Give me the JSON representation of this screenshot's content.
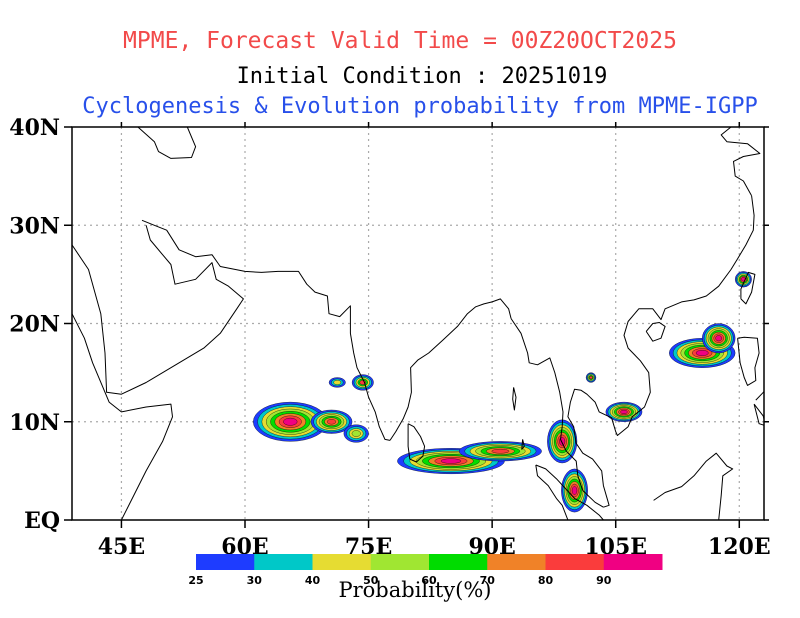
{
  "titles": {
    "line1": "MPME, Forecast Valid Time = 00Z20OCT2025",
    "line2": "Initial Condition : 20251019",
    "line3": "Cyclogenesis & Evolution probability from MPME-IGPP"
  },
  "colors": {
    "title1": "#f24a4a",
    "title2": "#000000",
    "title3": "#2850ea",
    "gridlines": "#aaaaaa",
    "coastline": "#000000"
  },
  "map_extent": {
    "lon_min": 39,
    "lon_max": 123,
    "lat_min": 0,
    "lat_max": 40
  },
  "lat_ticks": [
    {
      "value": 0,
      "label": "EQ"
    },
    {
      "value": 10,
      "label": "10N"
    },
    {
      "value": 20,
      "label": "20N"
    },
    {
      "value": 30,
      "label": "30N"
    },
    {
      "value": 40,
      "label": "40N"
    }
  ],
  "lon_ticks": [
    {
      "value": 45,
      "label": "45E"
    },
    {
      "value": 60,
      "label": "60E"
    },
    {
      "value": 75,
      "label": "75E"
    },
    {
      "value": 90,
      "label": "90E"
    },
    {
      "value": 105,
      "label": "105E"
    },
    {
      "value": 120,
      "label": "120E"
    }
  ],
  "colorbar": {
    "title": "Probability(%)",
    "bins": [
      {
        "color": "#1e3cff",
        "label": "25"
      },
      {
        "color": "#00c8c8",
        "label": "30"
      },
      {
        "color": "#e6dc32",
        "label": "40"
      },
      {
        "color": "#a0e632",
        "label": "50"
      },
      {
        "color": "#00dc00",
        "label": "60"
      },
      {
        "color": "#f08228",
        "label": "70"
      },
      {
        "color": "#fa3c3c",
        "label": "80"
      },
      {
        "color": "#f00082",
        "label": "90"
      }
    ]
  },
  "probability_regions": [
    {
      "region": "Arabian Sea west",
      "center": [
        65.5,
        10.0
      ],
      "radii": [
        4.5,
        2.0
      ],
      "levels": [
        25,
        30,
        40,
        50,
        60,
        70,
        80,
        90
      ]
    },
    {
      "region": "Arabian Sea west tail",
      "center": [
        70.5,
        10.0
      ],
      "radii": [
        2.5,
        1.2
      ],
      "levels": [
        25,
        30,
        40,
        50,
        60,
        70,
        80
      ]
    },
    {
      "region": "Arabian Sea north",
      "center": [
        74.3,
        14.0
      ],
      "radii": [
        1.3,
        0.8
      ],
      "levels": [
        25,
        30,
        40,
        60,
        80
      ]
    },
    {
      "region": "Lakshadweep",
      "center": [
        71.2,
        14.0
      ],
      "radii": [
        1.0,
        0.5
      ],
      "levels": [
        25,
        30,
        40
      ]
    },
    {
      "region": "Arabian Sea south",
      "center": [
        73.5,
        8.8
      ],
      "radii": [
        1.5,
        0.9
      ],
      "levels": [
        25,
        30,
        40,
        50
      ]
    },
    {
      "region": "Bay of Bengal south",
      "center": [
        85.0,
        6.0
      ],
      "radii": [
        6.5,
        1.3
      ],
      "levels": [
        25,
        30,
        40,
        50,
        60,
        70,
        80,
        90
      ]
    },
    {
      "region": "Bay of Bengal south-east",
      "center": [
        91.0,
        7.0
      ],
      "radii": [
        5.0,
        1.0
      ],
      "levels": [
        25,
        30,
        40,
        50,
        60,
        70,
        80
      ]
    },
    {
      "region": "Andaman Sea",
      "center": [
        98.5,
        8.0
      ],
      "radii": [
        1.8,
        2.2
      ],
      "levels": [
        25,
        30,
        40,
        50,
        60,
        70,
        80,
        90
      ]
    },
    {
      "region": "Strait of Malacca",
      "center": [
        100.0,
        3.0
      ],
      "radii": [
        1.6,
        2.2
      ],
      "levels": [
        25,
        30,
        40,
        50,
        60,
        70,
        80,
        90
      ]
    },
    {
      "region": "South China Sea west",
      "center": [
        106.0,
        11.0
      ],
      "radii": [
        2.2,
        1.0
      ],
      "levels": [
        25,
        30,
        40,
        50,
        60,
        70,
        80,
        90
      ]
    },
    {
      "region": "South China Sea north-east",
      "center": [
        115.5,
        17.0
      ],
      "radii": [
        4.0,
        1.5
      ],
      "levels": [
        25,
        30,
        40,
        50,
        60,
        70,
        80,
        90
      ]
    },
    {
      "region": "Luzon Strait",
      "center": [
        117.5,
        18.5
      ],
      "radii": [
        2.0,
        1.5
      ],
      "levels": [
        25,
        30,
        40,
        50,
        60,
        70,
        80,
        90
      ]
    },
    {
      "region": "Taiwan Strait",
      "center": [
        120.5,
        24.5
      ],
      "radii": [
        1.0,
        0.8
      ],
      "levels": [
        25,
        30,
        40,
        60,
        80,
        90
      ]
    },
    {
      "region": "Gulf of Thailand",
      "center": [
        102.0,
        14.5
      ],
      "radii": [
        0.6,
        0.5
      ],
      "levels": [
        25,
        30,
        40,
        60,
        80
      ]
    }
  ]
}
